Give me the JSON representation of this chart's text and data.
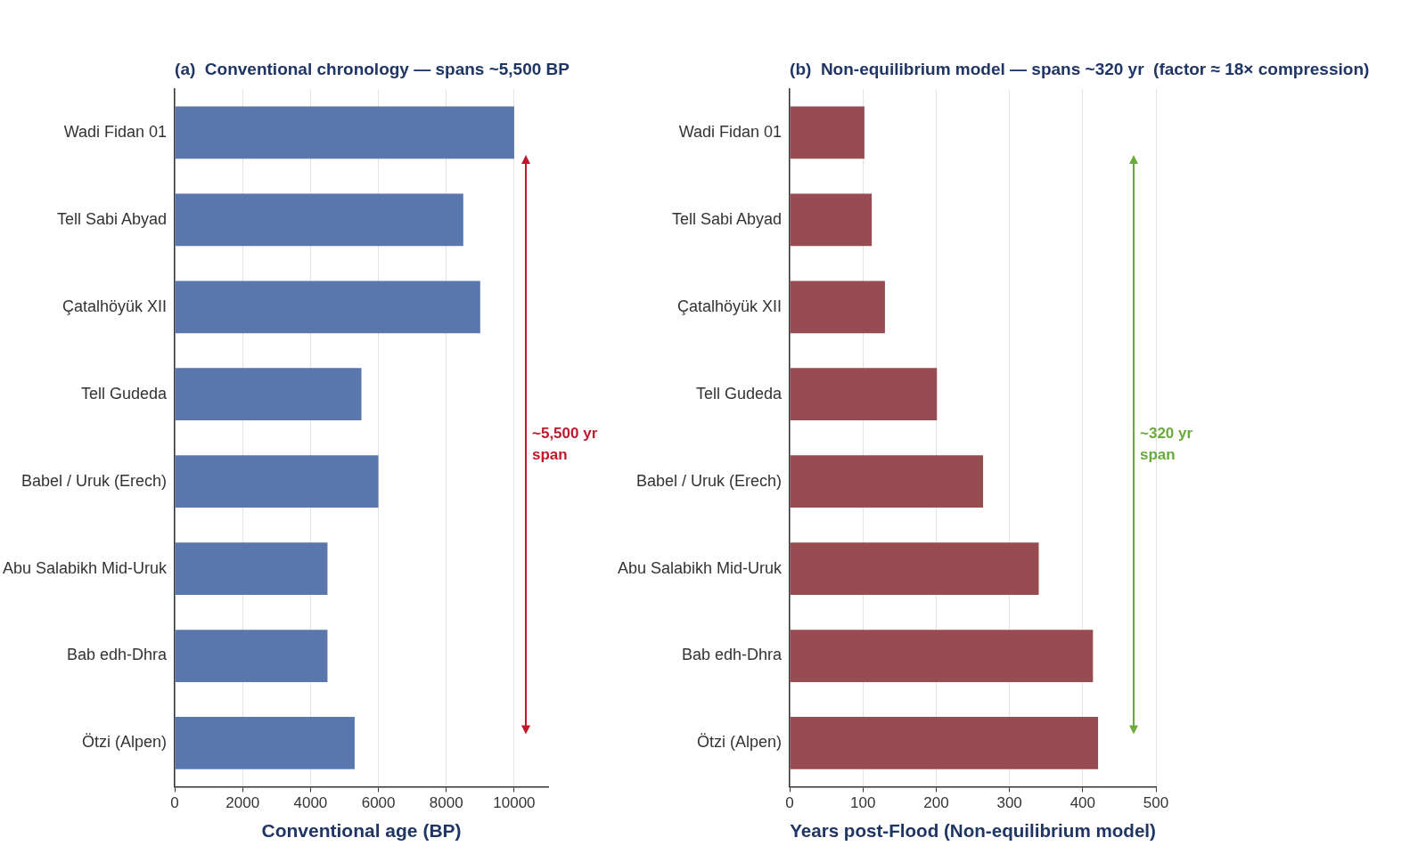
{
  "chart_data": [
    {
      "type": "bar",
      "orientation": "horizontal",
      "title": "(a)  Conventional chronology — spans ~5,500 BP",
      "xlabel": "Conventional age (BP)",
      "categories": [
        "Wadi Fidan 01",
        "Tell Sabi Abyad",
        "Çatalhöyük XII",
        "Tell Gudeda",
        "Babel / Uruk (Erech)",
        "Abu Salabikh Mid-Uruk",
        "Bab edh-Dhra",
        "Ötzi (Alpen)"
      ],
      "values": [
        10000,
        8500,
        9000,
        5500,
        6000,
        4500,
        4500,
        5300
      ],
      "color": "#5a77ad",
      "xlim": [
        0,
        11000
      ],
      "xticks": [
        0,
        2000,
        4000,
        6000,
        8000,
        10000
      ],
      "grid": "x",
      "legend": false,
      "annotations": [
        "~5,500 yr span"
      ]
    },
    {
      "type": "bar",
      "orientation": "horizontal",
      "title": "(b)  Non-equilibrium model — spans ~320 yr  (factor ≈ 18× compression)",
      "xlabel": "Years post-Flood (Non-equilibrium model)",
      "categories": [
        "Wadi Fidan 01",
        "Tell Sabi Abyad",
        "Çatalhöyük XII",
        "Tell Gudeda",
        "Babel / Uruk (Erech)",
        "Abu Salabikh Mid-Uruk",
        "Bab edh-Dhra",
        "Ötzi (Alpen)"
      ],
      "values": [
        102,
        112,
        130,
        201,
        264,
        340,
        414,
        421
      ],
      "color": "#964c50",
      "xlim": [
        0,
        500
      ],
      "xticks": [
        0,
        100,
        200,
        300,
        400,
        500
      ],
      "grid": "x",
      "legend": false,
      "annotations": [
        "~320 yr span"
      ]
    }
  ]
}
